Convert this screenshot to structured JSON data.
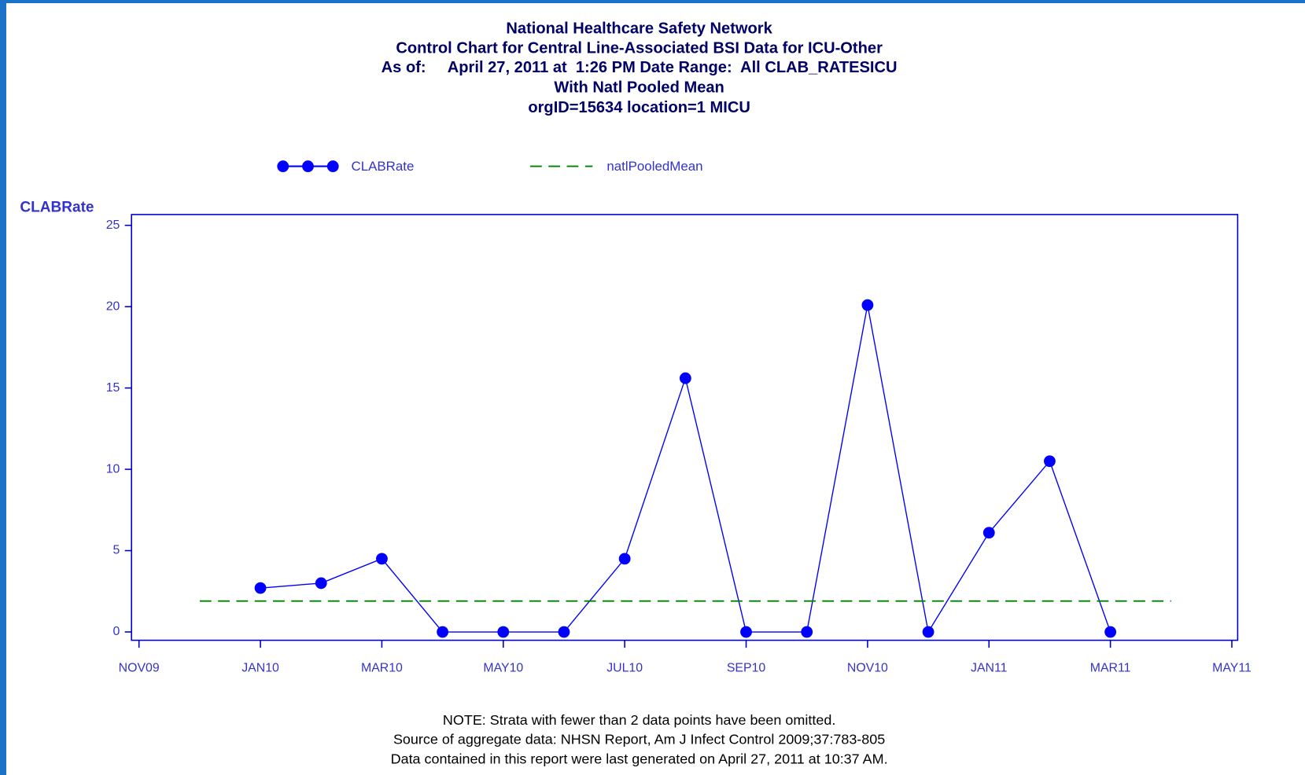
{
  "chart_data": {
    "type": "line",
    "title": [
      "National Healthcare Safety Network",
      "Control Chart for Central Line-Associated BSI Data for ICU-Other",
      "As of:     April 27, 2011 at  1:26 PM Date Range:  All CLAB_RATESICU",
      "With Natl Pooled Mean",
      "orgID=15634 location=1 MICU"
    ],
    "y_label": "CLABRate",
    "categories": [
      "NOV09",
      null,
      "JAN10",
      null,
      "MAR10",
      null,
      "MAY10",
      null,
      "JUL10",
      null,
      "SEP10",
      null,
      "NOV10",
      null,
      "JAN11",
      null,
      "MAR11",
      null,
      "MAY11"
    ],
    "series": [
      {
        "name": "CLABRate",
        "color": "#0000ff",
        "style": "solid-markers",
        "values": [
          null,
          null,
          2.7,
          3.0,
          4.5,
          0,
          0,
          0,
          4.5,
          15.6,
          0,
          0,
          20.1,
          0,
          6.1,
          10.5,
          0,
          null,
          null
        ]
      },
      {
        "name": "natlPooledMean",
        "color": "#008000",
        "style": "dashed",
        "values": [
          null,
          1.9,
          1.9,
          1.9,
          1.9,
          1.9,
          1.9,
          1.9,
          1.9,
          1.9,
          1.9,
          1.9,
          1.9,
          1.9,
          1.9,
          1.9,
          1.9,
          1.9,
          null
        ]
      }
    ],
    "ylim": [
      0,
      25
    ],
    "yticks": [
      0,
      5,
      10,
      15,
      20,
      25
    ],
    "notes": [
      "NOTE: Strata with fewer than 2 data points have been omitted.",
      "Source of aggregate data: NHSN Report, Am J Infect Control 2009;37:783-805",
      "Data contained in this report were last generated on April 27, 2011 at 10:37 AM."
    ]
  }
}
